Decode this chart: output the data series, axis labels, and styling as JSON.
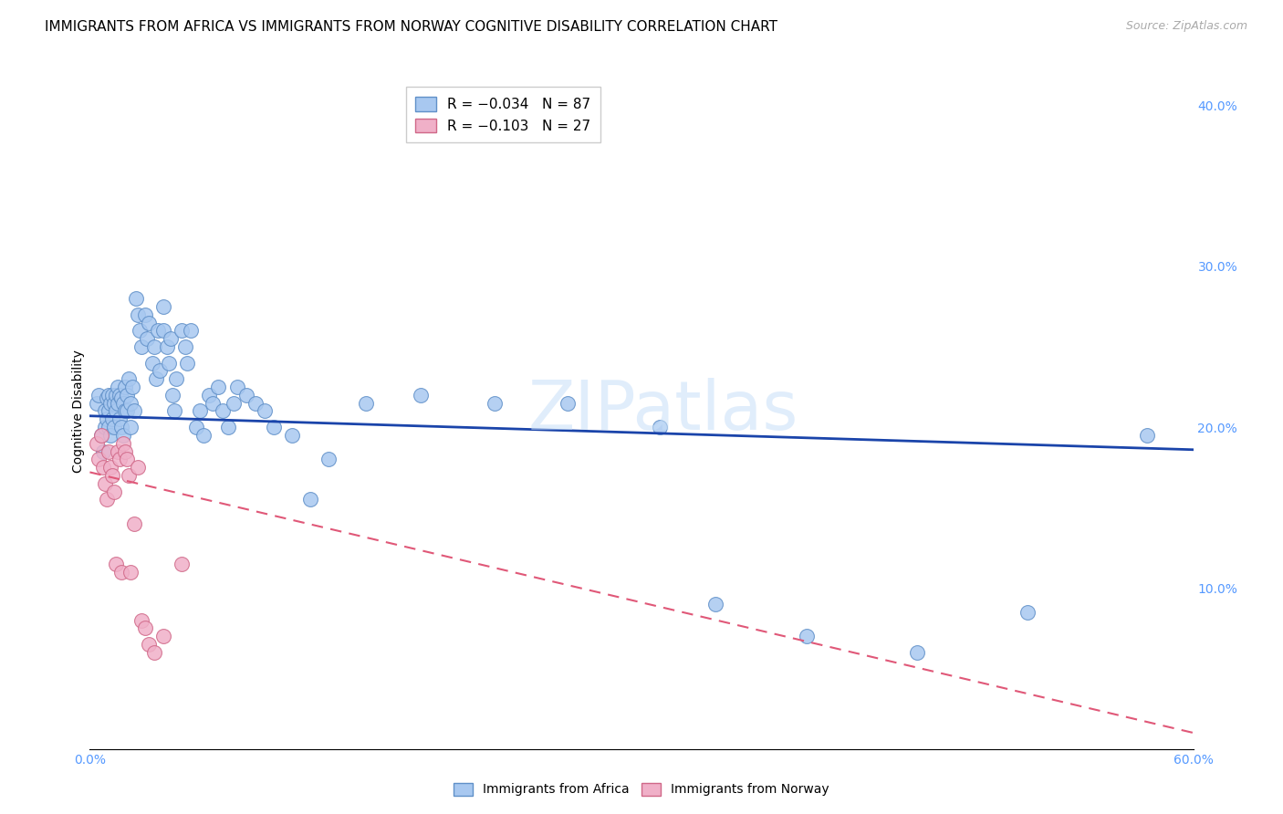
{
  "title": "IMMIGRANTS FROM AFRICA VS IMMIGRANTS FROM NORWAY COGNITIVE DISABILITY CORRELATION CHART",
  "source": "Source: ZipAtlas.com",
  "ylabel": "Cognitive Disability",
  "xlim": [
    0.0,
    0.6
  ],
  "ylim": [
    0.0,
    0.42
  ],
  "right_yticks": [
    0.0,
    0.1,
    0.2,
    0.3,
    0.4
  ],
  "right_yticklabels": [
    "",
    "10.0%",
    "20.0%",
    "30.0%",
    "40.0%"
  ],
  "africa_color": "#a8c8f0",
  "africa_edge": "#6090c8",
  "africa_line_color": "#1a44aa",
  "norway_color": "#f0b0c8",
  "norway_edge": "#d06888",
  "norway_line_color": "#e05878",
  "grid_color": "#cccccc",
  "tick_color": "#5599ff",
  "title_fontsize": 11,
  "axis_label_fontsize": 10,
  "tick_fontsize": 10,
  "watermark": "ZIPatlas",
  "legend_r_africa": "R = −0.034",
  "legend_n_africa": "N = 87",
  "legend_r_norway": "R = −0.103",
  "legend_n_norway": "N = 27",
  "africa_x": [
    0.004,
    0.005,
    0.006,
    0.007,
    0.008,
    0.008,
    0.009,
    0.009,
    0.01,
    0.01,
    0.01,
    0.011,
    0.011,
    0.012,
    0.012,
    0.013,
    0.013,
    0.014,
    0.014,
    0.015,
    0.015,
    0.016,
    0.016,
    0.017,
    0.017,
    0.018,
    0.018,
    0.019,
    0.019,
    0.02,
    0.02,
    0.021,
    0.022,
    0.022,
    0.023,
    0.024,
    0.025,
    0.026,
    0.027,
    0.028,
    0.03,
    0.031,
    0.032,
    0.034,
    0.035,
    0.036,
    0.037,
    0.038,
    0.04,
    0.04,
    0.042,
    0.043,
    0.044,
    0.045,
    0.046,
    0.047,
    0.05,
    0.052,
    0.053,
    0.055,
    0.058,
    0.06,
    0.062,
    0.065,
    0.067,
    0.07,
    0.072,
    0.075,
    0.078,
    0.08,
    0.085,
    0.09,
    0.095,
    0.1,
    0.11,
    0.12,
    0.13,
    0.15,
    0.18,
    0.22,
    0.26,
    0.31,
    0.34,
    0.39,
    0.45,
    0.51,
    0.575
  ],
  "africa_y": [
    0.215,
    0.22,
    0.195,
    0.185,
    0.21,
    0.2,
    0.218,
    0.205,
    0.22,
    0.21,
    0.2,
    0.215,
    0.195,
    0.22,
    0.205,
    0.215,
    0.2,
    0.22,
    0.21,
    0.225,
    0.215,
    0.22,
    0.205,
    0.218,
    0.2,
    0.215,
    0.195,
    0.21,
    0.225,
    0.22,
    0.21,
    0.23,
    0.215,
    0.2,
    0.225,
    0.21,
    0.28,
    0.27,
    0.26,
    0.25,
    0.27,
    0.255,
    0.265,
    0.24,
    0.25,
    0.23,
    0.26,
    0.235,
    0.275,
    0.26,
    0.25,
    0.24,
    0.255,
    0.22,
    0.21,
    0.23,
    0.26,
    0.25,
    0.24,
    0.26,
    0.2,
    0.21,
    0.195,
    0.22,
    0.215,
    0.225,
    0.21,
    0.2,
    0.215,
    0.225,
    0.22,
    0.215,
    0.21,
    0.2,
    0.195,
    0.155,
    0.18,
    0.215,
    0.22,
    0.215,
    0.215,
    0.2,
    0.09,
    0.07,
    0.06,
    0.085,
    0.195
  ],
  "norway_x": [
    0.004,
    0.005,
    0.006,
    0.007,
    0.008,
    0.009,
    0.01,
    0.011,
    0.012,
    0.013,
    0.014,
    0.015,
    0.016,
    0.017,
    0.018,
    0.019,
    0.02,
    0.021,
    0.022,
    0.024,
    0.026,
    0.028,
    0.03,
    0.032,
    0.035,
    0.04,
    0.05
  ],
  "norway_y": [
    0.19,
    0.18,
    0.195,
    0.175,
    0.165,
    0.155,
    0.185,
    0.175,
    0.17,
    0.16,
    0.115,
    0.185,
    0.18,
    0.11,
    0.19,
    0.185,
    0.18,
    0.17,
    0.11,
    0.14,
    0.175,
    0.08,
    0.075,
    0.065,
    0.06,
    0.07,
    0.115
  ],
  "africa_line_x": [
    0.0,
    0.6
  ],
  "africa_line_y": [
    0.207,
    0.186
  ],
  "norway_line_x": [
    0.0,
    0.6
  ],
  "norway_line_y": [
    0.172,
    0.01
  ]
}
